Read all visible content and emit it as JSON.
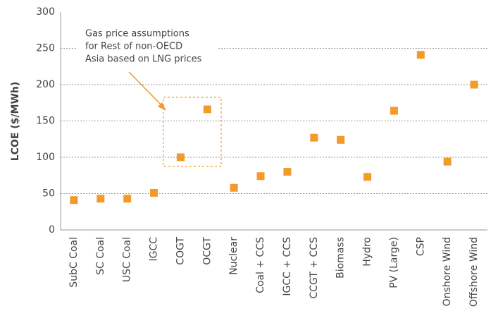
{
  "chart_data": {
    "type": "scatter",
    "ylabel": "LCOE ($/MWh)",
    "annotation": [
      "Gas price assumptions",
      "for Rest of non-OECD",
      "Asia based on LNG prices"
    ],
    "categories": [
      "SubC Coal",
      "SC Coal",
      "USC Coal",
      "IGCC",
      "COGT",
      "OCGT",
      "Nuclear",
      "Coal + CCS",
      "IGCC + CCS",
      "CCGT + CCS",
      "Biomass",
      "Hydro",
      "PV (Large)",
      "CSP",
      "Onshore Wind",
      "Offshore Wind"
    ],
    "values": [
      41,
      43,
      43,
      51,
      100,
      166,
      58,
      74,
      80,
      127,
      124,
      73,
      164,
      241,
      94,
      200
    ],
    "color": "#f39a2b",
    "ylim": [
      0,
      300
    ],
    "yticks": [
      0,
      50,
      100,
      150,
      200,
      250,
      300
    ],
    "grid": true
  }
}
